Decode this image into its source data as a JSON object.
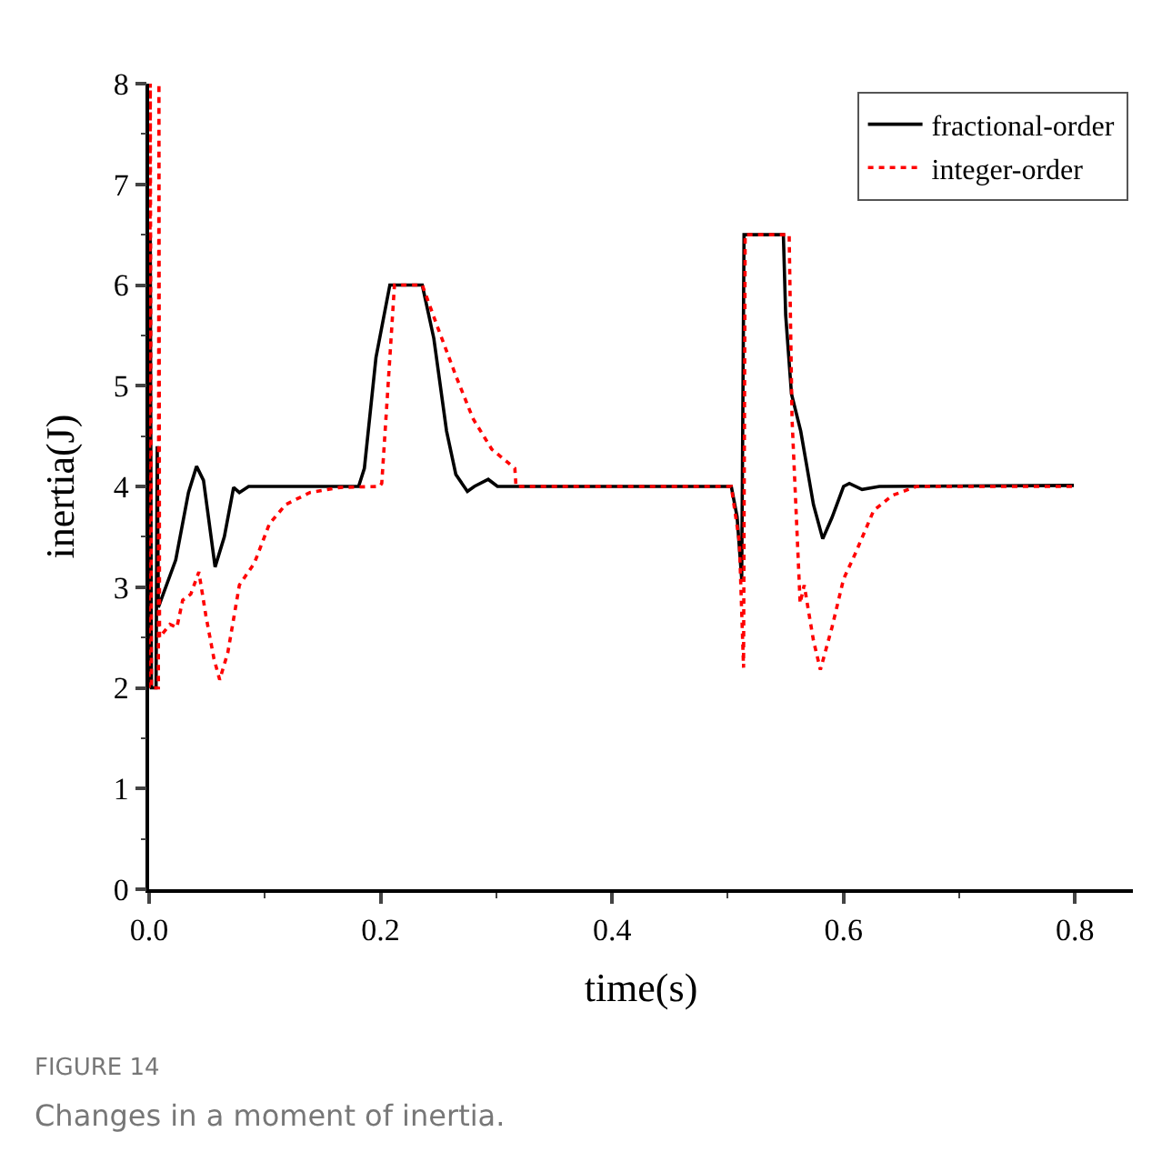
{
  "chart_data": {
    "type": "line",
    "xlabel": "time(s)",
    "ylabel": "inertia(J)",
    "xlim": [
      0,
      0.85
    ],
    "ylim": [
      0,
      8
    ],
    "xticks": [
      {
        "value": 0,
        "label": "0.0"
      },
      {
        "value": 0.2,
        "label": "0.2"
      },
      {
        "value": 0.4,
        "label": "0.4"
      },
      {
        "value": 0.6,
        "label": "0.6"
      },
      {
        "value": 0.8,
        "label": "0.8"
      }
    ],
    "yticks": [
      0,
      1,
      2,
      3,
      4,
      5,
      6,
      7,
      8
    ],
    "grid": false,
    "legend": "top right",
    "marker": "none",
    "annotations": [
      "FIGURE 14",
      "Changes in a moment of inertia."
    ],
    "series": [
      {
        "name": "fractional-order",
        "color": "#000000",
        "line_style": "solid",
        "x": [
          0,
          0.001,
          0.002,
          0.006,
          0.007,
          0.008,
          0.023,
          0.034,
          0.041,
          0.047,
          0.057,
          0.065,
          0.073,
          0.078,
          0.086,
          0.181,
          0.186,
          0.196,
          0.208,
          0.236,
          0.246,
          0.257,
          0.265,
          0.275,
          0.281,
          0.293,
          0.301,
          0.503,
          0.508,
          0.512,
          0.514,
          0.548,
          0.55,
          0.555,
          0.563,
          0.574,
          0.582,
          0.59,
          0.6,
          0.605,
          0.616,
          0.631,
          0.799
        ],
        "values": [
          2,
          6.5,
          2,
          2,
          4.4,
          2.8,
          3.27,
          3.94,
          4.2,
          4.06,
          3.2,
          3.5,
          3.99,
          3.94,
          4.0,
          4.0,
          4.18,
          5.28,
          6.0,
          6.0,
          5.47,
          4.55,
          4.12,
          3.95,
          4.0,
          4.07,
          4.0,
          4.0,
          3.7,
          3.08,
          6.5,
          6.5,
          5.7,
          4.92,
          4.55,
          3.82,
          3.48,
          3.69,
          4.0,
          4.03,
          3.97,
          4.0,
          4.01
        ]
      },
      {
        "name": "integer-order",
        "color": "#ff0000",
        "line_style": "dotted",
        "x": [
          0,
          0.001,
          0.002,
          0.008,
          0.0085,
          0.009,
          0.018,
          0.024,
          0.029,
          0.036,
          0.043,
          0.049,
          0.056,
          0.061,
          0.068,
          0.078,
          0.091,
          0.104,
          0.118,
          0.139,
          0.165,
          0.199,
          0.201,
          0.206,
          0.212,
          0.236,
          0.249,
          0.265,
          0.28,
          0.296,
          0.316,
          0.317,
          0.503,
          0.51,
          0.5136,
          0.515,
          0.553,
          0.5555,
          0.5625,
          0.566,
          0.574,
          0.58,
          0.59,
          0.6,
          0.61,
          0.626,
          0.642,
          0.663,
          0.799
        ],
        "values": [
          2,
          8,
          2,
          2,
          8,
          2.5,
          2.63,
          2.6,
          2.87,
          2.93,
          3.15,
          2.72,
          2.29,
          2.08,
          2.35,
          3.02,
          3.24,
          3.63,
          3.82,
          3.94,
          3.99,
          4.0,
          4.03,
          4.92,
          6.0,
          6.0,
          5.59,
          5.1,
          4.67,
          4.37,
          4.18,
          4.0,
          4.0,
          3.45,
          2.2,
          6.5,
          6.5,
          4.67,
          2.84,
          3.02,
          2.47,
          2.18,
          2.6,
          3.08,
          3.33,
          3.76,
          3.91,
          4.0,
          4.0
        ]
      }
    ]
  }
}
